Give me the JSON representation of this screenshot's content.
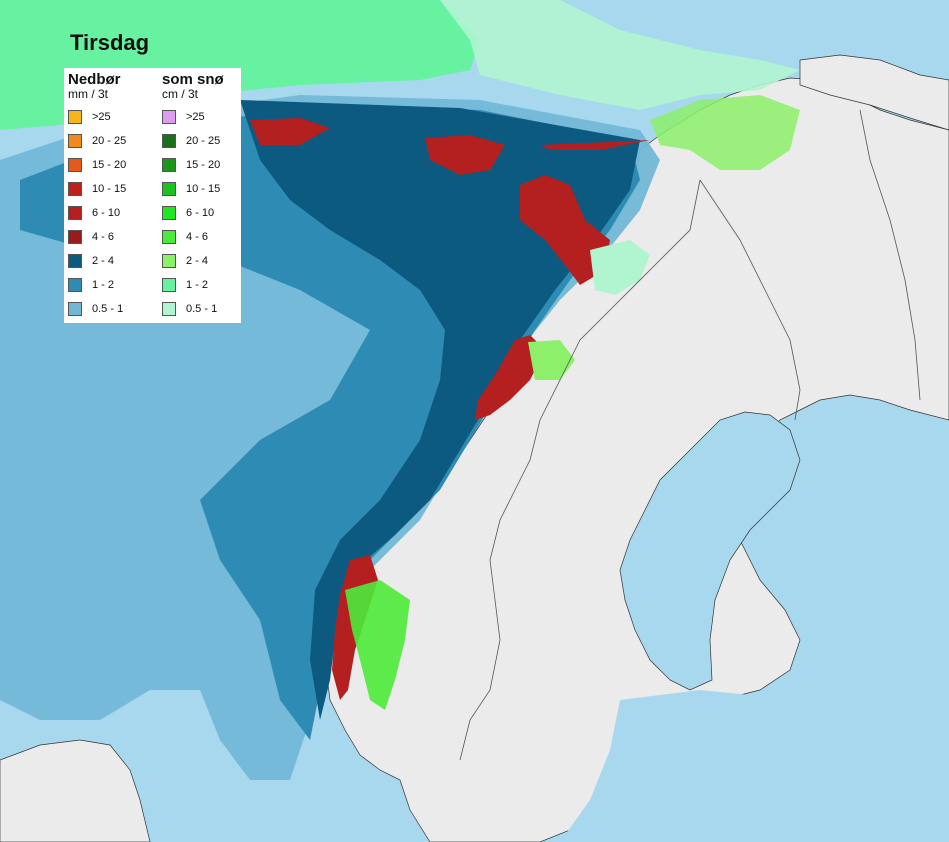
{
  "title": "Tirsdag",
  "legend": {
    "precip": {
      "heading": "Nedbør",
      "unit": "mm / 3t",
      "items": [
        {
          "label": ">25",
          "color": "#f7b51b"
        },
        {
          "label": "20 - 25",
          "color": "#f08a1c"
        },
        {
          "label": "15 - 20",
          "color": "#e5591c"
        },
        {
          "label": "10 - 15",
          "color": "#c0201c"
        },
        {
          "label": "6 - 10",
          "color": "#b4201f"
        },
        {
          "label": "4 - 6",
          "color": "#9a1b1b"
        },
        {
          "label": "2 - 4",
          "color": "#0c5a80"
        },
        {
          "label": "1 - 2",
          "color": "#2e8cb4"
        },
        {
          "label": "0.5 - 1",
          "color": "#72b8d6"
        }
      ]
    },
    "snow": {
      "heading": "som snø",
      "unit": "cm / 3t",
      "items": [
        {
          "label": ">25",
          "color": "#dc9cf0"
        },
        {
          "label": "20 - 25",
          "color": "#1a6f1a"
        },
        {
          "label": "15 - 20",
          "color": "#1c961c"
        },
        {
          "label": "10 - 15",
          "color": "#1ec21e"
        },
        {
          "label": "6 - 10",
          "color": "#22e622"
        },
        {
          "label": "4 - 6",
          "color": "#4ceb3a"
        },
        {
          "label": "2 - 4",
          "color": "#8cf06a"
        },
        {
          "label": "1 - 2",
          "color": "#66f2a0"
        },
        {
          "label": "0.5 - 1",
          "color": "#b0f5cf"
        }
      ]
    }
  },
  "colors": {
    "sea": "#a8d8ee",
    "land": "#ebebeb",
    "border": "#555555"
  }
}
